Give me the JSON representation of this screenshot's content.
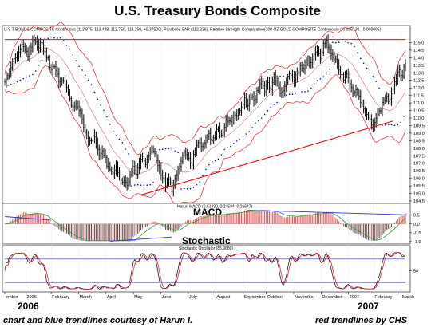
{
  "title": "U.S. Treasury Bonds Composite",
  "price_header": "U S T BONDS COMPOSITE Continuous (112.875, 113.438, 112.750, 113.250, +0.37500), Parabolic SAR (112.236), Relative Strength Comparative(100 OZ GOLD COMPOSITE Continuous) (-0.036130, -0.000095)",
  "macd_header": "Harun MACD (0.51230, 0.24594, 0.26647)",
  "macd_label": "MACD",
  "stoch_header": "Stochastic Oscillator (85.9880)",
  "stoch_label": "Stochastic",
  "year_left": "2006",
  "year_right": "2007",
  "caption_left": "chart and blue trendlines courtesy of Harun I.",
  "caption_right": "red trendlines by CHS",
  "colors": {
    "bars": "#000000",
    "bands": "#e02020",
    "sar": "#0000cc",
    "trend_red": "#ee0000",
    "trend_blue": "#3030c0",
    "hist": "#e06060",
    "signal": "#2a9a2a"
  },
  "chart_data": [
    {
      "type": "candlestick",
      "title": "U.S. Treasury Bonds Composite",
      "ylim": [
        104.5,
        115.5
      ],
      "y_ticks": [
        "115.0",
        "114.5",
        "114.0",
        "113.5",
        "113.0",
        "112.5",
        "112.0",
        "111.5",
        "111.0",
        "110.5",
        "110.0",
        "109.5",
        "109.0",
        "108.5",
        "108.0",
        "107.5",
        "107.0",
        "106.5",
        "106.0",
        "105.5",
        "105.0",
        "104.5"
      ],
      "y_tick_values": [
        115.0,
        114.5,
        114.0,
        113.5,
        113.0,
        112.5,
        112.0,
        111.5,
        111.0,
        110.5,
        110.0,
        109.5,
        109.0,
        108.5,
        108.0,
        107.5,
        107.0,
        106.5,
        106.0,
        105.5,
        105.0,
        104.5
      ],
      "x_labels": [
        "ember",
        "2006",
        "February",
        "March",
        "April",
        "May",
        "June",
        "July",
        "August",
        "September",
        "October",
        "November",
        "December",
        "2007",
        "February",
        "March"
      ],
      "x_label_idx": [
        0,
        10,
        22,
        35,
        48,
        61,
        74,
        87,
        100,
        113,
        124,
        137,
        150,
        163,
        175,
        188
      ],
      "close_path": [
        112.5,
        112.8,
        113.5,
        113.9,
        114.2,
        114.9,
        114.6,
        114.1,
        114.8,
        115.1,
        114.7,
        115.0,
        114.4,
        114.0,
        113.2,
        113.5,
        112.9,
        112.2,
        112.6,
        111.8,
        111.1,
        110.6,
        111.0,
        110.2,
        109.4,
        108.8,
        108.3,
        109.0,
        108.1,
        107.4,
        107.8,
        107.0,
        106.6,
        106.3,
        106.9,
        106.0,
        105.8,
        105.5,
        106.1,
        106.8,
        106.2,
        107.1,
        107.5,
        106.9,
        107.6,
        108.0,
        107.3,
        106.7,
        106.1,
        105.6,
        105.9,
        105.2,
        106.0,
        106.6,
        107.3,
        107.8,
        107.2,
        107.0,
        107.9,
        108.4,
        108.0,
        108.6,
        108.9,
        108.5,
        109.1,
        109.3,
        108.9,
        109.6,
        110.0,
        109.7,
        110.4,
        110.1,
        110.8,
        111.2,
        110.9,
        111.6,
        111.1,
        111.9,
        112.4,
        111.8,
        112.3,
        112.0,
        112.8,
        112.3,
        111.6,
        112.0,
        112.6,
        113.0,
        112.4,
        112.9,
        113.4,
        113.1,
        113.8,
        113.5,
        114.1,
        114.5,
        114.0,
        114.8,
        115.0,
        114.6,
        114.1,
        113.8,
        113.0,
        112.6,
        112.9,
        112.2,
        111.6,
        111.9,
        111.3,
        110.8,
        110.2,
        109.9,
        109.5,
        109.8,
        110.4,
        110.9,
        111.5,
        111.1,
        111.9,
        112.6,
        113.3,
        112.8,
        113.6
      ],
      "upper_trend_level": 115.2,
      "lower_trend": [
        {
          "x": 88,
          "y": 104.9
        },
        {
          "x": 251,
          "y": 109.8
        }
      ]
    },
    {
      "type": "macd",
      "title": "MACD",
      "values": [
        0.5123,
        0.24594,
        0.26647
      ],
      "ylim": [
        -1.05,
        0.85
      ],
      "y_ticks": [
        "0.5",
        "0.0",
        "-0.5",
        "-1.0"
      ],
      "y_tick_values": [
        0.5,
        0.0,
        -0.5,
        -1.0
      ],
      "trend_blue": [
        [
          {
            "x": 0,
            "y": 0.42
          },
          {
            "x": 30,
            "y": 0.22
          }
        ],
        [
          {
            "x": 68,
            "y": -0.98
          },
          {
            "x": 108,
            "y": -0.74
          }
        ],
        [
          {
            "x": 157,
            "y": 0.78
          },
          {
            "x": 260,
            "y": 0.52
          }
        ]
      ]
    },
    {
      "type": "stochastic",
      "title": "Stochastic",
      "value": 85.988,
      "ylim": [
        0,
        100
      ],
      "y_ticks": [
        "50"
      ],
      "y_tick_values": [
        50
      ],
      "levels": [
        80,
        20
      ]
    }
  ]
}
